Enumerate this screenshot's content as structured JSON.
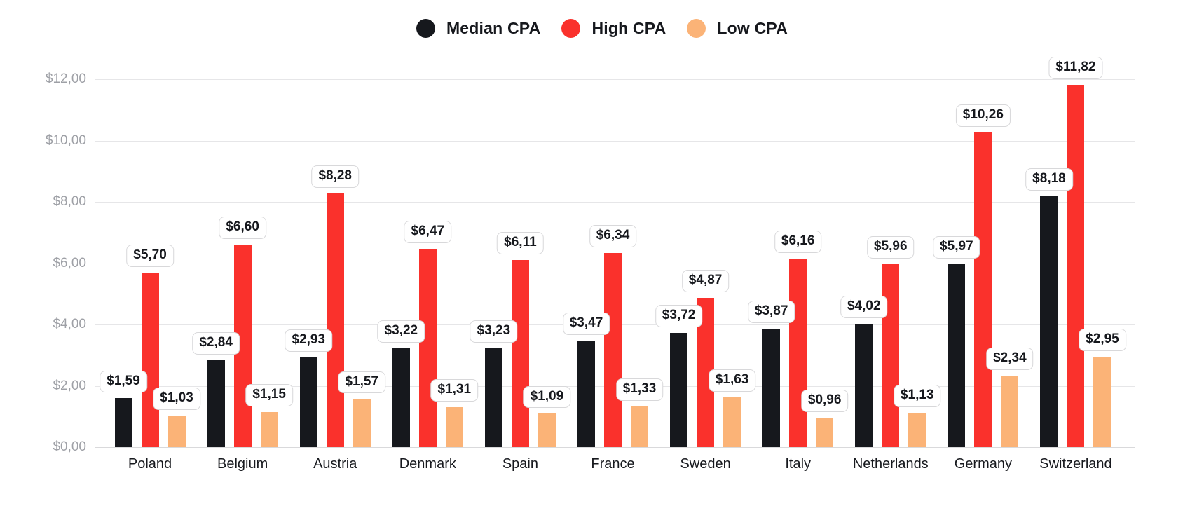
{
  "colors": {
    "background": "#FFFFFF",
    "gridline": "#E6E6E8",
    "baseline": "#D9D9DB",
    "axis_text": "#9EA0A6",
    "pill_bg": "#FFFFFF",
    "pill_border": "#D8D8DA",
    "pill_text": "#16181D",
    "category_text": "#17191E",
    "legend_text": "#16181D"
  },
  "chart_data": {
    "type": "bar",
    "title": "",
    "xlabel": "",
    "ylabel": "",
    "currency": "$",
    "decimal_separator": ",",
    "grid": true,
    "legend_position": "top",
    "categories": [
      "Poland",
      "Belgium",
      "Austria",
      "Denmark",
      "Spain",
      "France",
      "Sweden",
      "Italy",
      "Netherlands",
      "Germany",
      "Switzerland"
    ],
    "series": [
      {
        "name": "Median CPA",
        "color": "#16181D",
        "values": [
          1.59,
          2.84,
          2.93,
          3.22,
          3.23,
          3.47,
          3.72,
          3.87,
          4.02,
          5.97,
          8.18
        ],
        "labels": [
          "$1,59",
          "$2,84",
          "$2,93",
          "$3,22",
          "$3,23",
          "$3,47",
          "$3,72",
          "$3,87",
          "$4,02",
          "$5,97",
          "$8,18"
        ]
      },
      {
        "name": "High CPA",
        "color": "#FA312C",
        "values": [
          5.7,
          6.6,
          8.28,
          6.47,
          6.11,
          6.34,
          4.87,
          6.16,
          5.96,
          10.26,
          11.82
        ],
        "labels": [
          "$5,70",
          "$6,60",
          "$8,28",
          "$6,47",
          "$6,11",
          "$6,34",
          "$4,87",
          "$6,16",
          "$5,96",
          "$10,26",
          "$11,82"
        ]
      },
      {
        "name": "Low CPA",
        "color": "#FBB377",
        "values": [
          1.03,
          1.15,
          1.57,
          1.31,
          1.09,
          1.33,
          1.63,
          0.96,
          1.13,
          2.34,
          2.95
        ],
        "labels": [
          "$1,03",
          "$1,15",
          "$1,57",
          "$1,31",
          "$1,09",
          "$1,33",
          "$1,63",
          "$0,96",
          "$1,13",
          "$2,34",
          "$2,95"
        ]
      }
    ],
    "y_axis": {
      "min": 0,
      "max": 12,
      "tick_step": 2,
      "ticks": [
        "$0,00",
        "$2,00",
        "$4,00",
        "$6,00",
        "$8,00",
        "$10,00",
        "$12,00"
      ]
    }
  }
}
